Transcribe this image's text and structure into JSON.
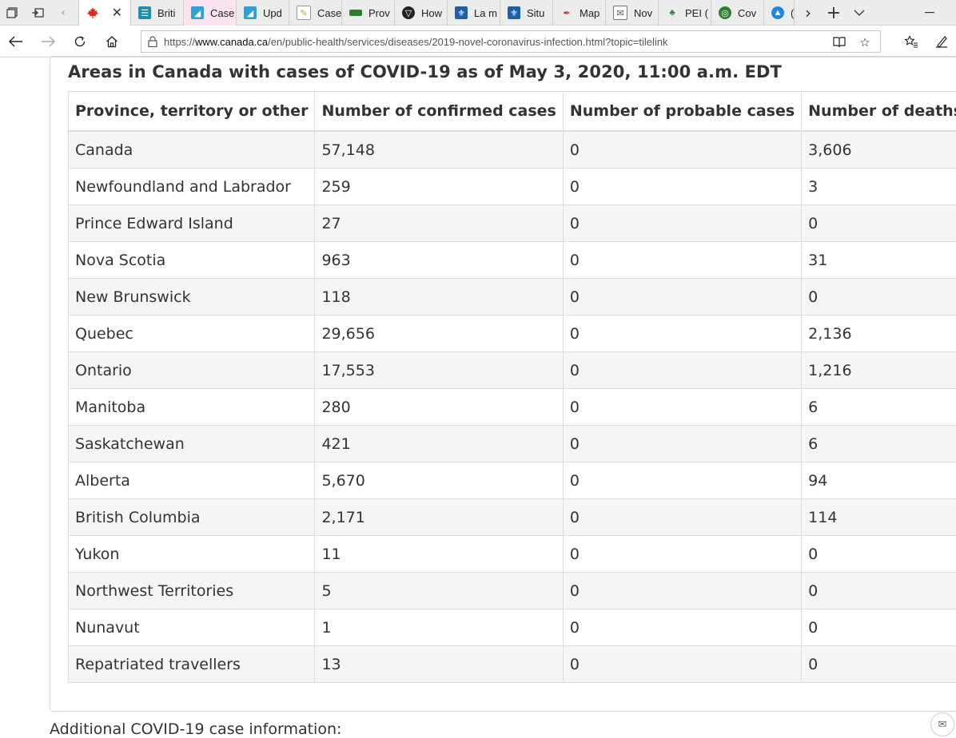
{
  "browser": {
    "tabs": [
      {
        "label": "",
        "icon": "maple-leaf-icon",
        "color": "#d52b1e"
      },
      {
        "label": "Briti",
        "icon": "bc-icon",
        "color": "#1c8fb0"
      },
      {
        "label": "Case",
        "icon": "arcgis-icon",
        "color": "#2d9fd9"
      },
      {
        "label": "Upd",
        "icon": "arcgis-icon",
        "color": "#2d9fd9"
      },
      {
        "label": "Case",
        "icon": "document-icon",
        "color": "#c39b3a"
      },
      {
        "label": "Prov",
        "icon": "alberta-icon",
        "color": "#2e7d32"
      },
      {
        "label": "How",
        "icon": "news-icon",
        "color": "#222222"
      },
      {
        "label": "La m",
        "icon": "fleur-de-lis-icon",
        "color": "#1f5fa8"
      },
      {
        "label": "Situ",
        "icon": "fleur-de-lis-icon",
        "color": "#1f5fa8"
      },
      {
        "label": "Map",
        "icon": "map-icon",
        "color": "#c62828"
      },
      {
        "label": "Nov",
        "icon": "nova-scotia-icon",
        "color": "#555555"
      },
      {
        "label": "PEI (",
        "icon": "pei-icon",
        "color": "#2e7d32"
      },
      {
        "label": "Cov",
        "icon": "globe-icon",
        "color": "#2e7d32"
      },
      {
        "label": "(",
        "icon": "yukon-icon",
        "color": "#1e88e5"
      }
    ],
    "url_prefix": "https://",
    "url_domain": "www.canada.ca",
    "url_rest": "/en/public-health/services/diseases/2019-novel-coronavirus-infection.html?topic=tilelink"
  },
  "page": {
    "heading": "Areas in Canada with cases of COVID-19 as of May 3, 2020, 11:00 a.m. EDT",
    "footer_text": "Additional COVID-19 case information:"
  },
  "table": {
    "headers": [
      "Province, territory or other",
      "Number of confirmed cases",
      "Number of probable cases",
      "Number of deaths"
    ],
    "rows": [
      [
        "Canada",
        "57,148",
        "0",
        "3,606"
      ],
      [
        "Newfoundland and Labrador",
        "259",
        "0",
        "3"
      ],
      [
        "Prince Edward Island",
        "27",
        "0",
        "0"
      ],
      [
        "Nova Scotia",
        "963",
        "0",
        "31"
      ],
      [
        "New Brunswick",
        "118",
        "0",
        "0"
      ],
      [
        "Quebec",
        "29,656",
        "0",
        "2,136"
      ],
      [
        "Ontario",
        "17,553",
        "0",
        "1,216"
      ],
      [
        "Manitoba",
        "280",
        "0",
        "6"
      ],
      [
        "Saskatchewan",
        "421",
        "0",
        "6"
      ],
      [
        "Alberta",
        "5,670",
        "0",
        "94"
      ],
      [
        "British Columbia",
        "2,171",
        "0",
        "114"
      ],
      [
        "Yukon",
        "11",
        "0",
        "0"
      ],
      [
        "Northwest Territories",
        "5",
        "0",
        "0"
      ],
      [
        "Nunavut",
        "1",
        "0",
        "0"
      ],
      [
        "Repatriated travellers",
        "13",
        "0",
        "0"
      ]
    ]
  }
}
